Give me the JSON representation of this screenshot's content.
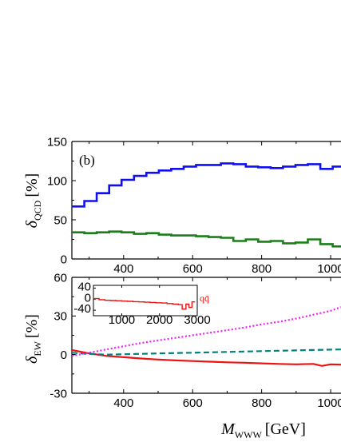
{
  "chart_data": [
    {
      "id": "qcd",
      "type": "line",
      "panel_label": "(b)",
      "ylabel": {
        "symbol": "δ",
        "sub": "QCD",
        "unit": "[%]"
      },
      "xlim": [
        250,
        1030
      ],
      "ylim": [
        0,
        150
      ],
      "xticks": [
        400,
        600,
        800,
        1000
      ],
      "yticks": [
        0,
        50,
        100,
        150
      ],
      "series": [
        {
          "color": "#1010ee",
          "style": "step",
          "x": [
            250,
            286,
            322,
            358,
            394,
            430,
            466,
            502,
            538,
            574,
            610,
            646,
            682,
            718,
            754,
            790,
            826,
            862,
            898,
            934,
            970,
            1006
          ],
          "y": [
            67,
            74,
            84,
            94,
            101,
            106,
            110,
            113,
            115,
            118,
            120,
            120,
            122,
            121,
            118,
            117,
            116,
            118,
            120,
            121,
            115,
            118
          ]
        },
        {
          "color": "#1a7f1a",
          "style": "step",
          "x": [
            250,
            286,
            322,
            358,
            394,
            430,
            466,
            502,
            538,
            574,
            610,
            646,
            682,
            718,
            754,
            790,
            826,
            862,
            898,
            934,
            970,
            1006
          ],
          "y": [
            34,
            33,
            34,
            35,
            34,
            32,
            33,
            31,
            30,
            30,
            29,
            28,
            27,
            23,
            25,
            22,
            23,
            20,
            21,
            25,
            19,
            16
          ]
        }
      ]
    },
    {
      "id": "ew",
      "type": "line",
      "ylabel": {
        "symbol": "δ",
        "sub": "EW",
        "unit": "[%]"
      },
      "xlabel": {
        "symbol": "M",
        "sub": "WWW",
        "unit": "[GeV]"
      },
      "xlim": [
        250,
        1030
      ],
      "ylim": [
        -30,
        60
      ],
      "xticks": [
        400,
        600,
        800,
        1000
      ],
      "yticks": [
        -30,
        0,
        30,
        60
      ],
      "series": [
        {
          "color": "#ee1111",
          "style": "solid",
          "x": [
            250,
            300,
            350,
            400,
            450,
            500,
            550,
            600,
            650,
            700,
            750,
            800,
            850,
            900,
            950,
            975,
            1000,
            1030
          ],
          "y": [
            3.5,
            1,
            -1,
            -2,
            -3,
            -3.8,
            -4.5,
            -5,
            -5.5,
            -6,
            -6.3,
            -6.8,
            -7.2,
            -7.5,
            -7.2,
            -8.8,
            -7.5,
            -7.8
          ]
        },
        {
          "color": "#008080",
          "style": "dashed",
          "x": [
            250,
            300,
            350,
            400,
            450,
            500,
            550,
            600,
            650,
            700,
            750,
            800,
            850,
            900,
            950,
            1000,
            1030
          ],
          "y": [
            1.5,
            0.5,
            0,
            0.3,
            0.6,
            0.9,
            1.2,
            1.5,
            1.8,
            2.1,
            2.4,
            2.7,
            3,
            3.3,
            3.6,
            3.9,
            4
          ]
        },
        {
          "color": "#ee22ee",
          "style": "dotted",
          "x": [
            250,
            300,
            350,
            400,
            450,
            500,
            550,
            600,
            650,
            700,
            750,
            800,
            850,
            900,
            950,
            1000,
            1030
          ],
          "y": [
            -1,
            1.5,
            4,
            6.5,
            9,
            11,
            13,
            15,
            17,
            19,
            21,
            23.5,
            25.5,
            28,
            31,
            34,
            37
          ]
        }
      ]
    },
    {
      "id": "inset",
      "type": "line",
      "series_label": "qq̄",
      "xlim": [
        250,
        3000
      ],
      "ylim": [
        -60,
        50
      ],
      "xticks": [
        1000,
        2000,
        3000
      ],
      "yticks": [
        -40,
        0,
        40
      ],
      "series": [
        {
          "color": "#ee1111",
          "style": "step",
          "x": [
            250,
            400,
            550,
            700,
            850,
            1000,
            1150,
            1300,
            1450,
            1600,
            1750,
            1900,
            2050,
            2200,
            2350,
            2500,
            2600,
            2700,
            2780,
            2860
          ],
          "y": [
            2,
            -2,
            -4,
            -5,
            -6,
            -7,
            -8,
            -9,
            -10,
            -11,
            -12,
            -13,
            -14,
            -16,
            -18,
            -20,
            -36,
            -18,
            -30,
            -10
          ]
        }
      ]
    }
  ]
}
